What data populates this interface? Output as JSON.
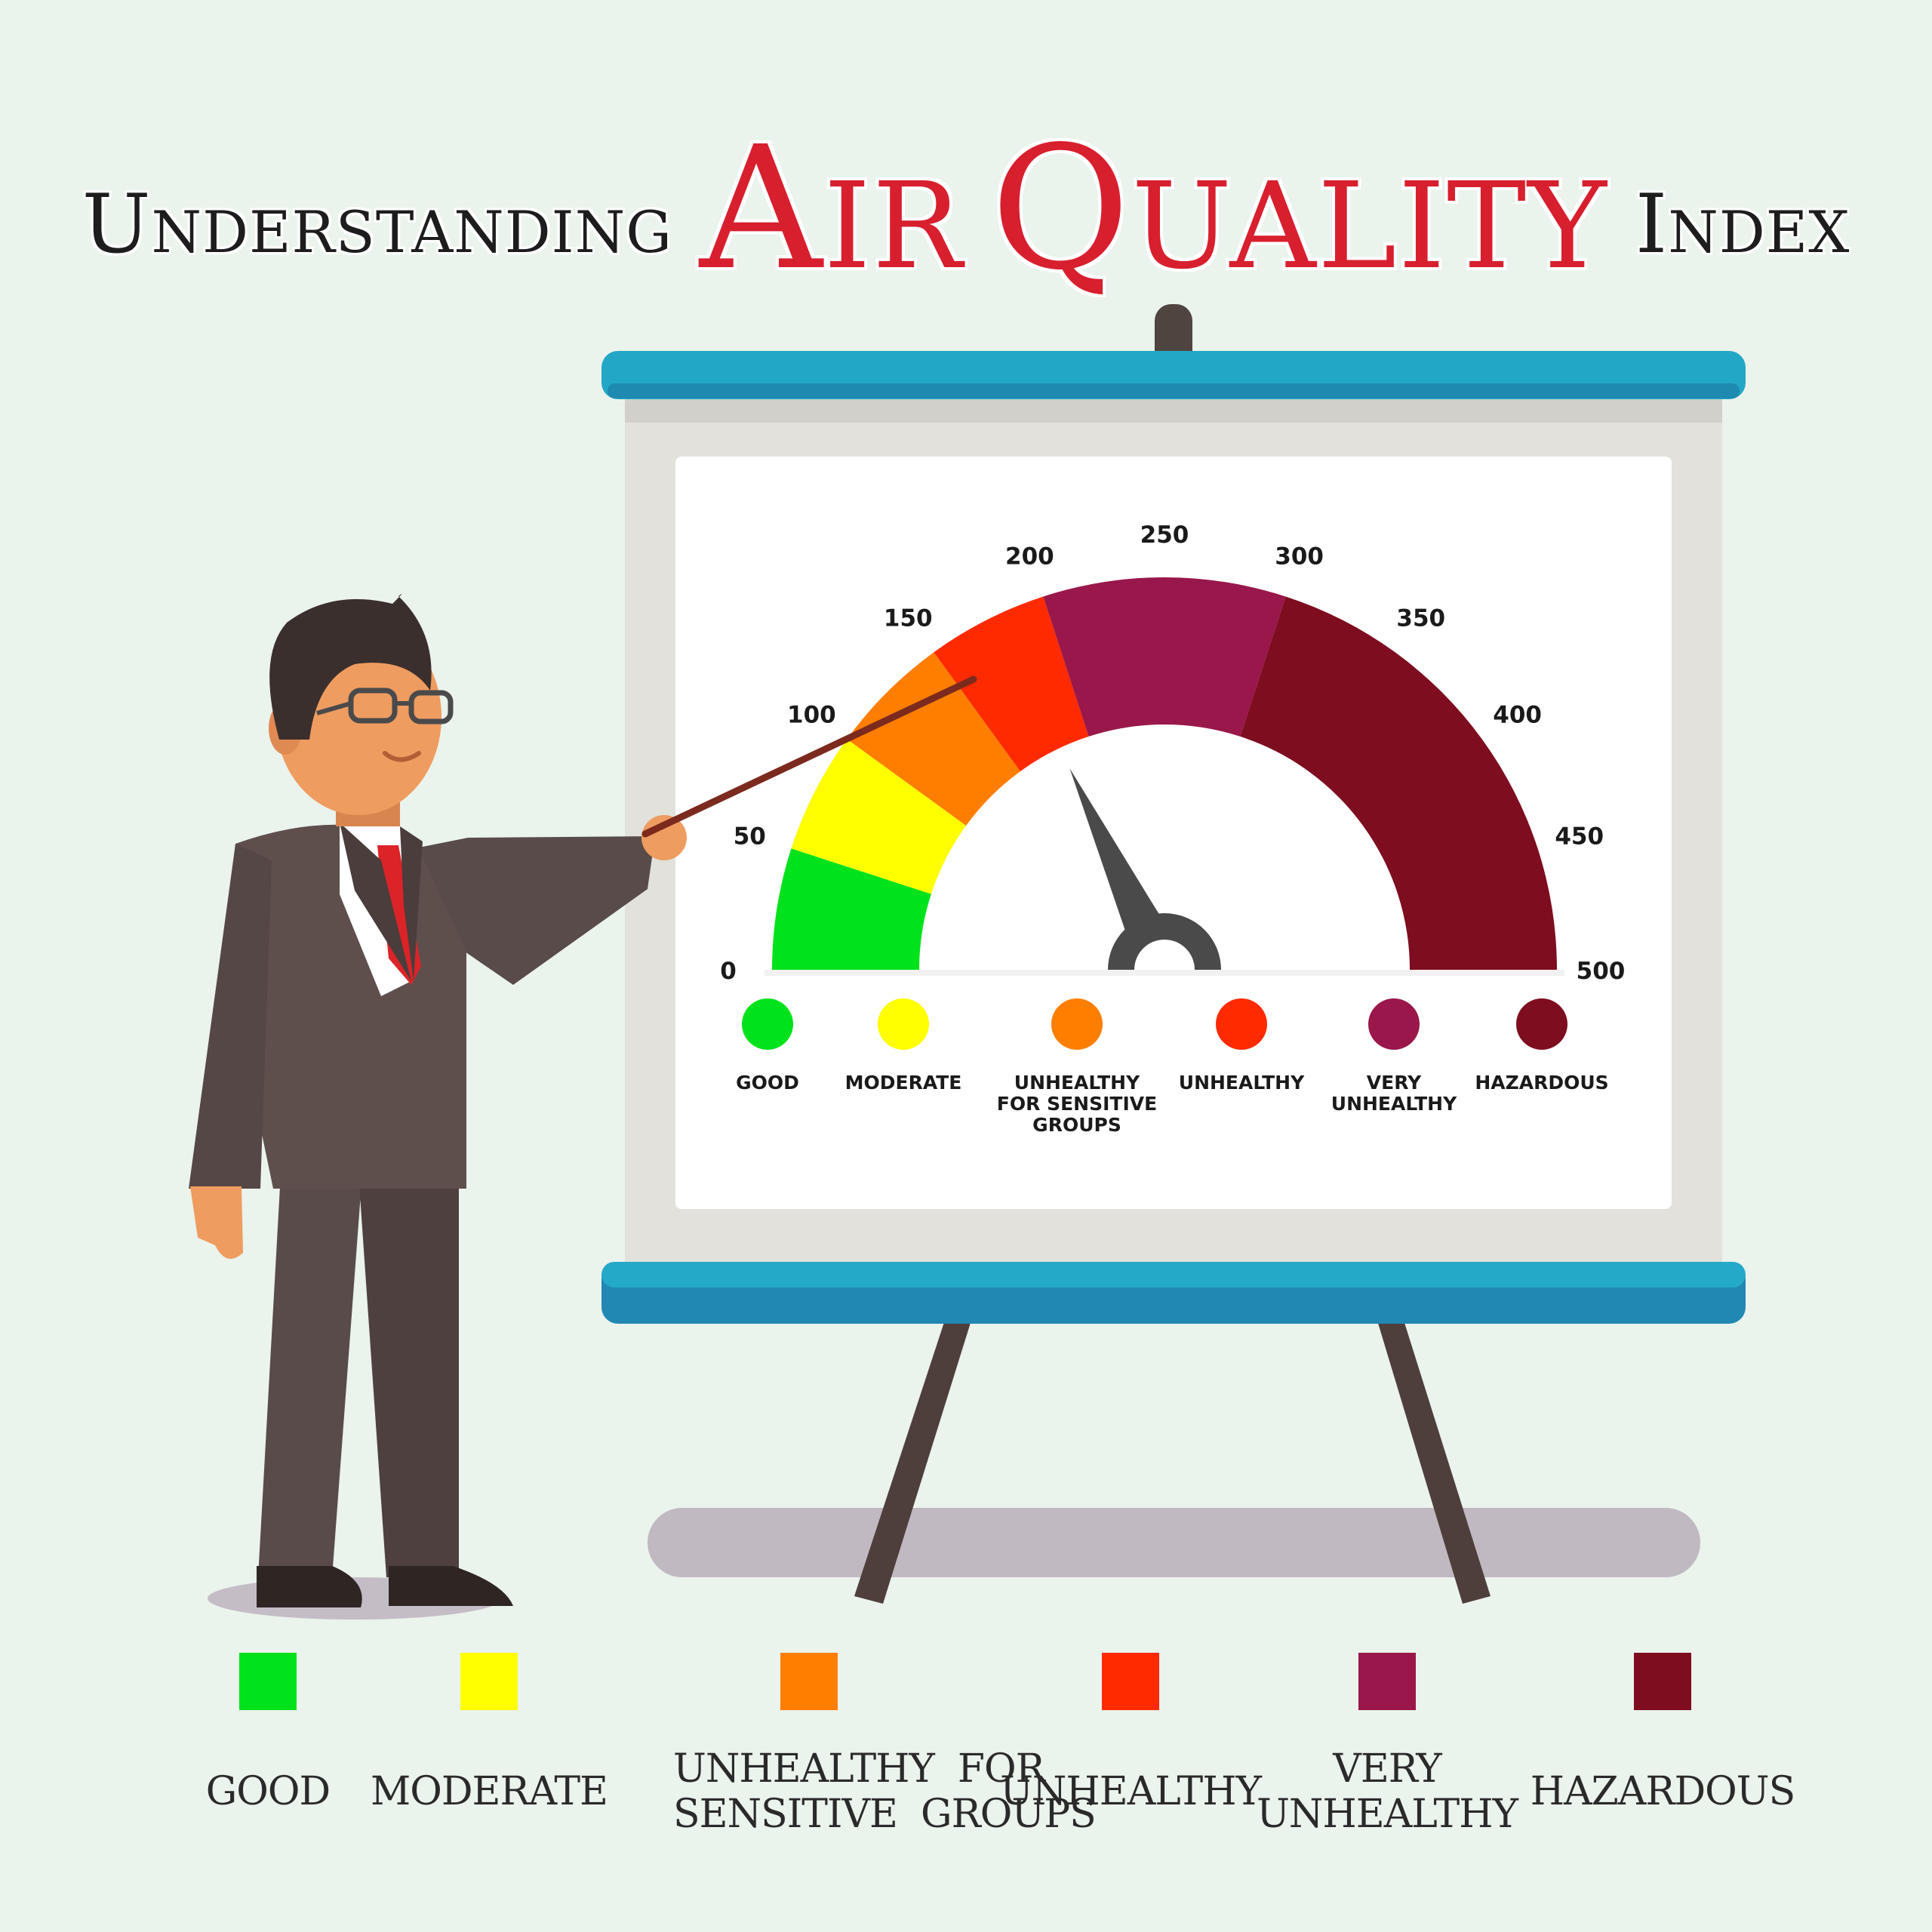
{
  "title": {
    "part1": "Understanding",
    "part2": "Air",
    "part3": "Quality",
    "part4": "Index"
  },
  "colors": {
    "good": "#00e21c",
    "moderate": "#ffff00",
    "sensitive": "#ff7e00",
    "unhealthy": "#ff2a00",
    "very_unhealthy": "#99174b",
    "hazardous": "#7e0d1f"
  },
  "chart_data": {
    "type": "gauge",
    "min": 0,
    "max": 500,
    "ticks": [
      "0",
      "50",
      "100",
      "150",
      "200",
      "250",
      "300",
      "350",
      "400",
      "450",
      "500"
    ],
    "needle_value": 180,
    "bands": [
      {
        "label": "GOOD",
        "from": 0,
        "to": 50,
        "color": "#00e21c"
      },
      {
        "label": "MODERATE",
        "from": 50,
        "to": 100,
        "color": "#ffff00"
      },
      {
        "label": "UNHEALTHY FOR SENSITIVE GROUPS",
        "from": 100,
        "to": 150,
        "color": "#ff7e00"
      },
      {
        "label": "UNHEALTHY",
        "from": 150,
        "to": 200,
        "color": "#ff2a00"
      },
      {
        "label": "VERY UNHEALTHY",
        "from": 200,
        "to": 300,
        "color": "#99174b"
      },
      {
        "label": "HAZARDOUS",
        "from": 300,
        "to": 500,
        "color": "#7e0d1f"
      }
    ],
    "legend": [
      {
        "lines": [
          "GOOD"
        ],
        "color": "#00e21c"
      },
      {
        "lines": [
          "MODERATE"
        ],
        "color": "#ffff00"
      },
      {
        "lines": [
          "UNHEALTHY",
          "FOR SENSITIVE",
          "GROUPS"
        ],
        "color": "#ff7e00"
      },
      {
        "lines": [
          "UNHEALTHY"
        ],
        "color": "#ff2a00"
      },
      {
        "lines": [
          "VERY",
          "UNHEALTHY"
        ],
        "color": "#99174b"
      },
      {
        "lines": [
          "HAZARDOUS"
        ],
        "color": "#7e0d1f"
      }
    ]
  },
  "key": [
    {
      "label1": "GOOD",
      "label2": "",
      "color": "#00e21c"
    },
    {
      "label1": "MODERATE",
      "label2": "",
      "color": "#ffff00"
    },
    {
      "label1": "UNHEALTHY  FOR",
      "label2": "SENSITIVE  GROUPS",
      "color": "#ff7e00"
    },
    {
      "label1": "UNHEALTHY",
      "label2": "",
      "color": "#ff2a00"
    },
    {
      "label1": "VERY",
      "label2": "UNHEALTHY",
      "color": "#99174b"
    },
    {
      "label1": "HAZARDOUS",
      "label2": "",
      "color": "#7e0d1f"
    }
  ]
}
